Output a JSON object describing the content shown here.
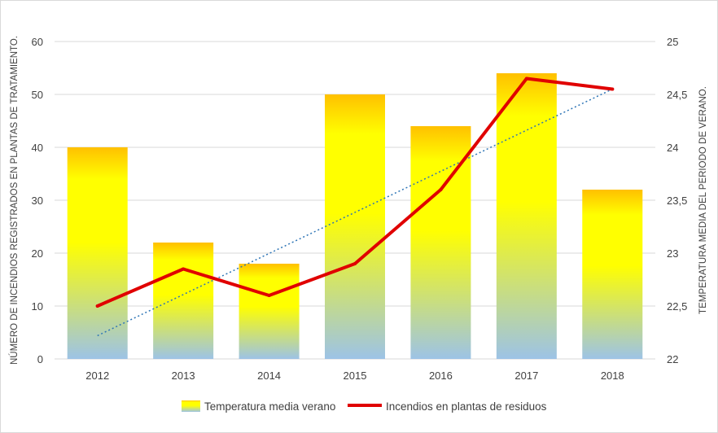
{
  "chart_data": {
    "type": "bar",
    "categories": [
      "2012",
      "2013",
      "2014",
      "2015",
      "2016",
      "2017",
      "2018"
    ],
    "series": [
      {
        "name": "Temperatura media verano",
        "type": "bar",
        "axis": "left",
        "values": [
          40,
          22,
          18,
          50,
          44,
          54,
          32
        ]
      },
      {
        "name": "Incendios en plantas de residuos",
        "type": "line",
        "axis": "right",
        "values": [
          22.5,
          22.85,
          22.6,
          22.9,
          23.6,
          24.65,
          24.55
        ]
      }
    ],
    "trendline": {
      "type": "linear",
      "style": "dotted",
      "color": "#2e75b6",
      "start": 22.22,
      "end": 24.55
    },
    "ylabel_left": "NÚMERO DE INCENDIOS REGISTRADOS EN PLANTAS  DE TRATAMIENTO.",
    "ylabel_right": "TEMPERATURA  MEDIA DEL PERIODO DE VERANO.",
    "ylim_left": [
      0,
      60
    ],
    "ylim_right": [
      22,
      25
    ],
    "yticks_left": [
      "0",
      "10",
      "20",
      "30",
      "40",
      "50",
      "60"
    ],
    "yticks_right": [
      "22",
      "22,5",
      "23",
      "23,5",
      "24",
      "24,5",
      "25"
    ],
    "grid": true,
    "legend_position": "bottom",
    "colors": {
      "bar_top": "#ffc000",
      "bar_mid": "#ffff00",
      "bar_bottom": "#9dc3e6",
      "line": "#e00000",
      "trend": "#2e75b6",
      "grid": "#d9d9d9"
    }
  }
}
